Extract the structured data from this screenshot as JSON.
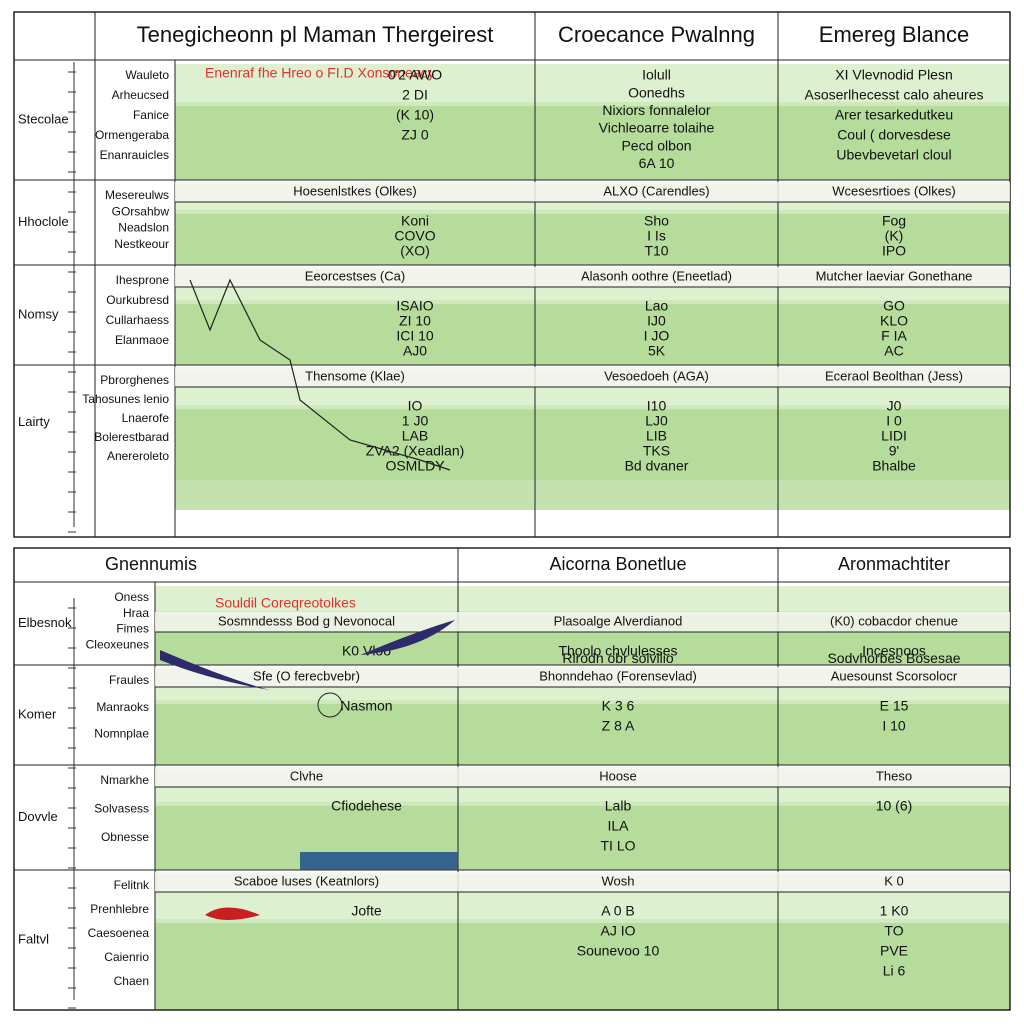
{
  "panels": [
    {
      "headers": [
        "Tenegicheonn pl Maman Thergeirest",
        "Croecance Pwalnng",
        "Emereg Blance"
      ],
      "subtitle": "Enenraf fhe Hreo o FI.D Xonsoneacy",
      "rows": [
        {
          "label": "Stecolae",
          "items": [
            "Wauleto",
            "Arheucsed",
            "Fanice",
            "Ormengeraba",
            "Enanrauicles"
          ],
          "cells": [
            [
              "0'2 AWO",
              "2 DI",
              "(K 10)",
              "ZJ 0"
            ],
            [
              "Iolull",
              "Oonedhs",
              "Nixiors fonnalelor",
              "Vichleoarre tolaihe",
              "Pecd olbon",
              "6A 10"
            ],
            [
              "XI Vlevnodid Plesn",
              "Asoserlhecesst calo aheures",
              "Arer tesarkedutkeu",
              "Coul ( dorvesdese",
              "Ubevbevetarl cloul"
            ]
          ]
        },
        {
          "label": "Hhoclole",
          "items": [
            "Mesereulws",
            "GOrsahbw",
            "Neadslon",
            "Nestkeour"
          ],
          "strips": [
            "Hoesenlstkes (Olkes)",
            "ALXO (Carendles)",
            "Wcesesrtioes (Olkes)"
          ],
          "cells": [
            [
              "Koni",
              "COVO",
              "(XO)"
            ],
            [
              "Sho",
              "I Is",
              "T10"
            ],
            [
              "Fog",
              "(K)",
              "IPO"
            ]
          ]
        },
        {
          "label": "Nomsy",
          "items": [
            "Ihesprone",
            "Ourkubresd",
            "Cullarhaess",
            "Elanmaoe"
          ],
          "strips": [
            "Eeorcestses (Ca)",
            "Alasonh oothre (Eneetlad)",
            "Mutcher laeviar Gonethane"
          ],
          "cells": [
            [
              "ISAIO",
              "ZI 10",
              "ICI 10",
              "AJ0"
            ],
            [
              "Lao",
              "IJ0",
              "I JO",
              "5K"
            ],
            [
              "GO",
              "KLO",
              "F IA",
              "AC"
            ]
          ]
        },
        {
          "label": "Lairty",
          "items": [
            "Pbrorghenes",
            "Tahosunes lenio",
            "Lnaerofe",
            "Bolerestbarad",
            "Anereroleto"
          ],
          "strips": [
            "Thensome (Klae)",
            "Vesoedoeh (AGA)",
            "Eceraol Beolthan (Jess)"
          ],
          "cells": [
            [
              "IO",
              "1 J0",
              "LAB",
              "ZVA2 (Xeadlan)",
              "OSMLDY"
            ],
            [
              "I10",
              "LJ0",
              "LIB",
              "TKS",
              "Bd dvaner"
            ],
            [
              "J0",
              "I 0",
              "LIDI",
              "9'",
              "Bhalbe"
            ]
          ]
        }
      ]
    },
    {
      "headers": [
        "Gnennumis",
        "Aicorna Bonetlue",
        "Aronmachtiter"
      ],
      "subtitle": "Souldil Coreqreotolkes",
      "rows": [
        {
          "label": "Elbesnok",
          "items": [
            "Oness",
            "Hraa",
            "Fimes",
            "Cleoxeunes"
          ],
          "strips": [
            "Sosmndesss Bod g Nevonocal",
            "Plasoalge Alverdianod",
            "(K0) cobacdor chenue"
          ],
          "cells": [
            [
              "K0 Vloo"
            ],
            [
              "Thoolo chvlulesses",
              "Rlrodn obr solvllio"
            ],
            [
              "Incesnoos",
              "Sodvhorbes Bosesae"
            ]
          ]
        },
        {
          "label": "Komer",
          "items": [
            "Fraules",
            "Manraoks",
            "Nomnplae"
          ],
          "strips": [
            "Sfe (O ferecbvebr)",
            "Bhonndehao (Forensevlad)",
            "Auesounst Scorsolocr"
          ],
          "cells": [
            [
              "Nasmon"
            ],
            [
              "K 3 6",
              "Z 8 A"
            ],
            [
              "E 15",
              "I 10"
            ]
          ]
        },
        {
          "label": "Dovvle",
          "items": [
            "Nmarkhe",
            "Solvasess",
            "Obnesse"
          ],
          "strips": [
            "Clvhe",
            "Hoose",
            "Theso"
          ],
          "cells": [
            [
              "Cfiodehese"
            ],
            [
              "Lalb",
              "ILA",
              "TI LO"
            ],
            [
              "10 (6)"
            ]
          ]
        },
        {
          "label": "Faltvl",
          "items": [
            "Felitnk",
            "Prenhlebre",
            "Caesoenea",
            "Caienrio",
            "Chaen"
          ],
          "strips": [
            "Scaboe luses (Keatnlors)",
            "Wosh",
            "K 0"
          ],
          "cells": [
            [
              "Jofte"
            ],
            [
              "A 0 B",
              "AJ IO",
              "Sounevoo 10"
            ],
            [
              "1 K0",
              "TO",
              "PVE",
              "Li 6"
            ]
          ]
        }
      ]
    }
  ]
}
